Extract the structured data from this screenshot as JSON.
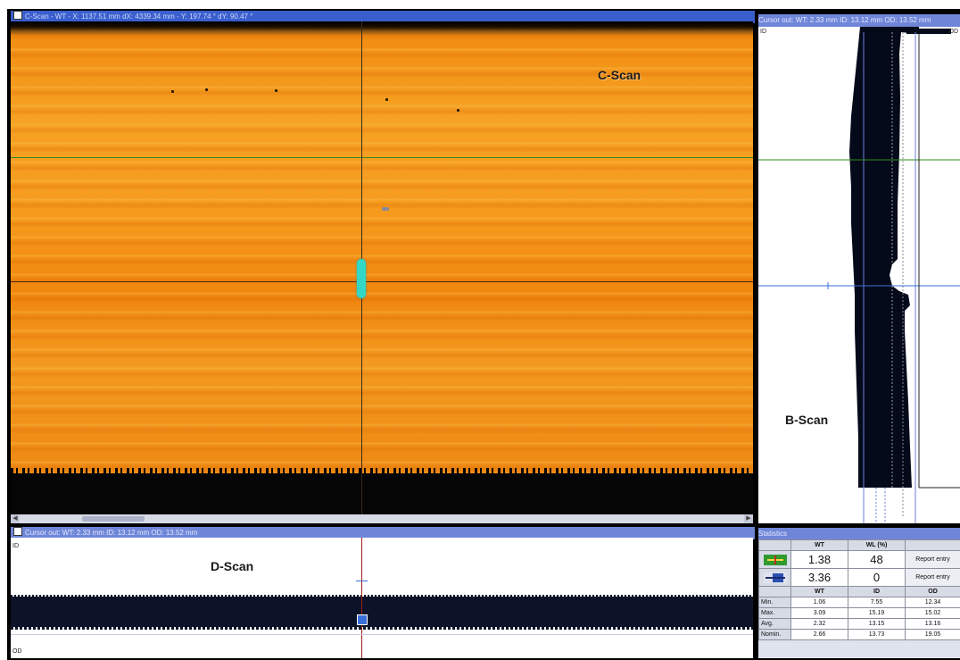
{
  "windows": {
    "cscan_title": "C-Scan - WT - X: 1137.51 mm dX: 4339.34 mm - Y: 197.74 ° dY: 90.47 °",
    "bscan_title": "Cursor out: WT: 2.33 mm ID: 13.12 mm OD: 13.52 mm",
    "dscan_title": "Cursor out: WT: 2.33 mm ID: 13.12 mm OD: 13.52 mm",
    "stats_title": "Statistics"
  },
  "labels": {
    "cscan": "C-Scan",
    "bscan": "B-Scan",
    "dscan": "D-Scan",
    "id_tag": "ID",
    "od_tag": "OD"
  },
  "colors": {
    "title_bar": "#3a5fcd",
    "cursor_green": "#2f8a1f",
    "cursor_dark": "#4a2a10",
    "cursor_blue": "#3a6fd8",
    "cursor_red": "#a02010",
    "defect": "#33d7c6"
  },
  "stats": {
    "headers": [
      "WT",
      "WL (%)"
    ],
    "cursor_rows": [
      {
        "icon": "green-cursor-icon",
        "wt": "1.38",
        "wl": "48",
        "button": "Report entry"
      },
      {
        "icon": "blue-cursor-icon",
        "wt": "3.36",
        "wl": "0",
        "button": "Report entry"
      }
    ],
    "summary_headers": [
      "WT",
      "ID",
      "OD"
    ],
    "summary_rows": [
      {
        "label": "Min.",
        "wt": "1.06",
        "id": "7.55",
        "od": "12.34"
      },
      {
        "label": "Max.",
        "wt": "3.09",
        "id": "15.19",
        "od": "15.02"
      },
      {
        "label": "Avg.",
        "wt": "2.32",
        "id": "13.15",
        "od": "13.16"
      },
      {
        "label": "Nomin.",
        "wt": "2.66",
        "id": "13.73",
        "od": "19.05"
      }
    ]
  }
}
